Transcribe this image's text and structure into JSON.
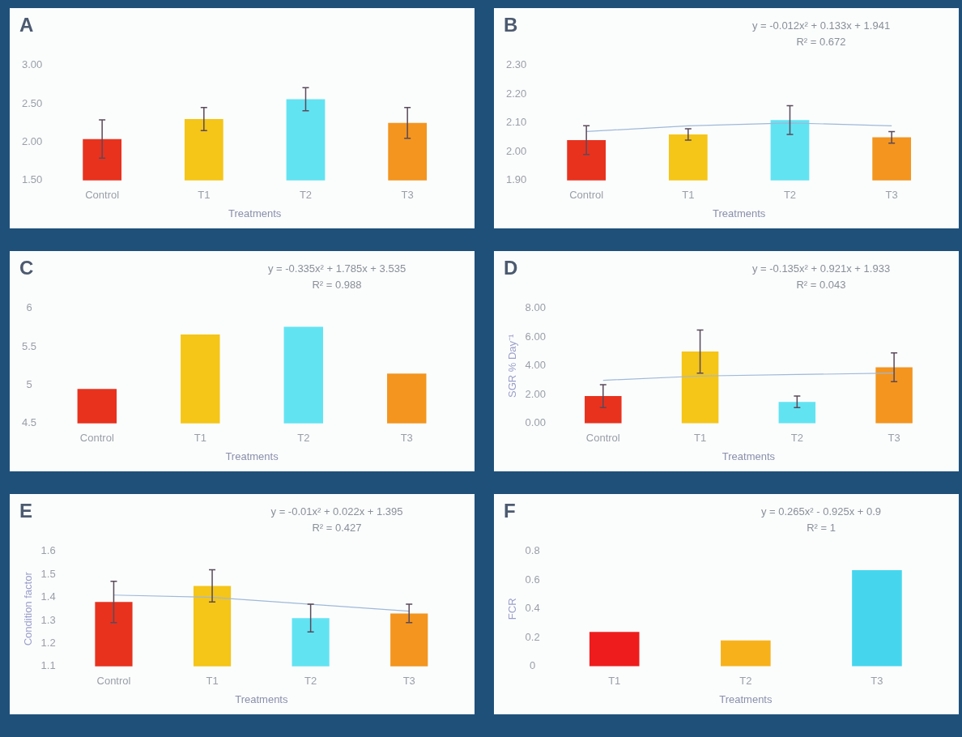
{
  "chart_data": [
    {
      "type": "bar",
      "title": "A",
      "xlabel": "Treatments",
      "categories": [
        "Control",
        "T1",
        "T2",
        "T3"
      ],
      "ylim": [
        1.5,
        3
      ],
      "yticks": [
        {
          "value": 1.5,
          "label": "1.50"
        },
        {
          "value": 2,
          "label": "2.00"
        },
        {
          "value": 2.5,
          "label": "2.50"
        },
        {
          "value": 3,
          "label": "3.00"
        }
      ],
      "grid": false,
      "legend": false,
      "series": [
        {
          "colors": [
            "#e8321e",
            "#f5c518",
            "#62e3f2",
            "#f3951f"
          ],
          "values": [
            2.04,
            2.3,
            2.56,
            2.25
          ],
          "errors": [
            0.25,
            0.15,
            0.15,
            0.2
          ]
        }
      ]
    },
    {
      "type": "bar",
      "title": "B",
      "xlabel": "Treatments",
      "categories": [
        "Control",
        "T1",
        "T2",
        "T3"
      ],
      "ylim": [
        1.9,
        2.3
      ],
      "yticks": [
        {
          "value": 1.9,
          "label": "1.90"
        },
        {
          "value": 2,
          "label": "2.00"
        },
        {
          "value": 2.1,
          "label": "2.10"
        },
        {
          "value": 2.2,
          "label": "2.20"
        },
        {
          "value": 2.3,
          "label": "2.30"
        }
      ],
      "grid": false,
      "legend": false,
      "annotations": [
        "y = -0.012x² + 0.133x + 1.941",
        "R² = 0.672"
      ],
      "series": [
        {
          "colors": [
            "#e8321e",
            "#f5c518",
            "#62e3f2",
            "#f3951f"
          ],
          "values": [
            2.04,
            2.06,
            2.11,
            2.05
          ],
          "errors": [
            0.05,
            0.02,
            0.05,
            0.02
          ]
        },
        {
          "type": "line",
          "color": "#9fb8d8",
          "values": [
            2.07,
            2.09,
            2.1,
            2.09
          ]
        }
      ]
    },
    {
      "type": "bar",
      "title": "C",
      "xlabel": "Treatments",
      "categories": [
        "Control",
        "T1",
        "T2",
        "T3"
      ],
      "ylim": [
        4.5,
        6
      ],
      "yticks": [
        4.5,
        5,
        5.5,
        6
      ],
      "grid": false,
      "legend": false,
      "annotations": [
        "y = -0.335x² + 1.785x + 3.535",
        "R² = 0.988"
      ],
      "series": [
        {
          "colors": [
            "#e8321e",
            "#f5c518",
            "#62e3f2",
            "#f3951f"
          ],
          "values": [
            4.95,
            5.66,
            5.76,
            5.15
          ]
        }
      ]
    },
    {
      "type": "bar",
      "title": "D",
      "xlabel": "Treatments",
      "ylabel": "SGR % Day⁻¹",
      "categories": [
        "Control",
        "T1",
        "T2",
        "T3"
      ],
      "ylim": [
        0,
        8
      ],
      "yticks": [
        {
          "value": 0,
          "label": "0.00"
        },
        {
          "value": 2,
          "label": "2.00"
        },
        {
          "value": 4,
          "label": "4.00"
        },
        {
          "value": 6,
          "label": "6.00"
        },
        {
          "value": 8,
          "label": "8.00"
        }
      ],
      "grid": false,
      "legend": false,
      "annotations": [
        "y = -0.135x² + 0.921x + 1.933",
        "R² = 0.043"
      ],
      "series": [
        {
          "colors": [
            "#e8321e",
            "#f5c518",
            "#62e3f2",
            "#f3951f"
          ],
          "values": [
            1.9,
            5,
            1.5,
            3.9
          ],
          "errors": [
            0.8,
            1.5,
            0.4,
            1
          ]
        },
        {
          "type": "line",
          "color": "#9fb8d8",
          "values": [
            3,
            3.3,
            3.4,
            3.5
          ]
        }
      ]
    },
    {
      "type": "bar",
      "title": "E",
      "xlabel": "Treatments",
      "ylabel": "Condition factor",
      "categories": [
        "Control",
        "T1",
        "T2",
        "T3"
      ],
      "ylim": [
        1.1,
        1.6
      ],
      "yticks": [
        1.1,
        1.2,
        1.3,
        1.4,
        1.5,
        1.6
      ],
      "grid": false,
      "legend": false,
      "annotations": [
        "y = -0.01x² + 0.022x + 1.395",
        "R² = 0.427"
      ],
      "series": [
        {
          "colors": [
            "#e8321e",
            "#f5c518",
            "#62e3f2",
            "#f3951f"
          ],
          "values": [
            1.38,
            1.45,
            1.31,
            1.33
          ],
          "errors": [
            0.09,
            0.07,
            0.06,
            0.04
          ]
        },
        {
          "type": "line",
          "color": "#9fb8d8",
          "values": [
            1.41,
            1.4,
            1.37,
            1.34
          ]
        }
      ]
    },
    {
      "type": "bar",
      "title": "F",
      "xlabel": "Treatments",
      "ylabel": "FCR",
      "categories": [
        "T1",
        "T2",
        "T3"
      ],
      "ylim": [
        0,
        0.8
      ],
      "yticks": [
        0,
        0.2,
        0.4,
        0.6,
        0.8
      ],
      "grid": false,
      "legend": false,
      "annotations": [
        "y = 0.265x² - 0.925x + 0.9",
        "R² = 1"
      ],
      "series": [
        {
          "colors": [
            "#ee1c1c",
            "#f7b21b",
            "#45d6ee"
          ],
          "values": [
            0.24,
            0.18,
            0.67
          ]
        }
      ]
    }
  ]
}
